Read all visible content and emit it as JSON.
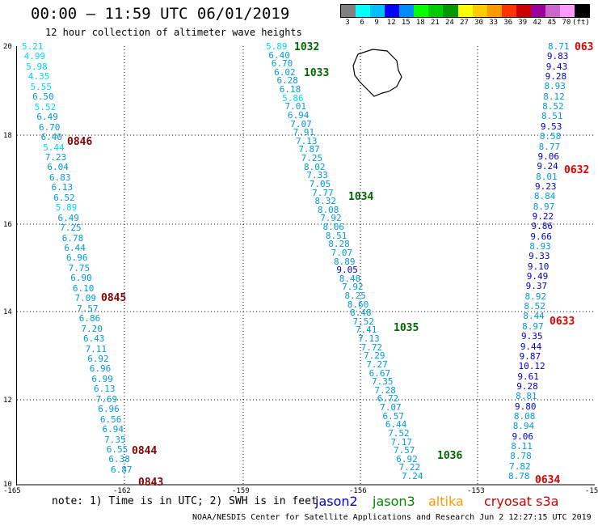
{
  "header": {
    "title": "00:00 – 11:59 UTC 06/01/2019",
    "subtitle": "12 hour collection of altimeter wave heights"
  },
  "legend": {
    "colors": [
      "#808080",
      "#00ffff",
      "#00bfff",
      "#0000ff",
      "#008bff",
      "#00ff00",
      "#00cc00",
      "#009900",
      "#ffff00",
      "#ffcc00",
      "#ff9900",
      "#ff3300",
      "#cc0000",
      "#990099",
      "#cc66cc",
      "#ff99ff",
      "#000000"
    ],
    "labels": [
      "3",
      "6",
      "9",
      "12",
      "15",
      "18",
      "21",
      "24",
      "27",
      "30",
      "33",
      "36",
      "39",
      "42",
      "45",
      "70",
      "(ft)"
    ]
  },
  "axes": {
    "x_ticks": [
      "-165",
      "-162",
      "-159",
      "-156",
      "-153",
      "-15"
    ],
    "y_ticks": [
      "20",
      "18",
      "16",
      "14",
      "12",
      "10"
    ]
  },
  "tracks": {
    "left": [
      "5.21",
      "4.99",
      "5.98",
      "4.35",
      "5.55",
      "6.50",
      "5.52",
      "6.49",
      "6.70",
      "6.40",
      "5.44",
      "7.23",
      "6.04",
      "6.83",
      "6.13",
      "6.52",
      "5.89",
      "6.49",
      "7.25",
      "6.78",
      "6.44",
      "6.96",
      "7.75",
      "6.90",
      "6.10",
      "7.09",
      "7.57",
      "6.86",
      "7.20",
      "6.43",
      "7.11",
      "6.92",
      "6.96",
      "6.99",
      "6.13",
      "7.69",
      "6.96",
      "6.56",
      "6.94",
      "7.35",
      "6.55",
      "6.38",
      "6.87"
    ],
    "middle": [
      "5.89",
      "6.40",
      "6.70",
      "6.02",
      "6.28",
      "6.18",
      "5.86",
      "7.01",
      "6.94",
      "7.07",
      "7.91",
      "7.13",
      "7.87",
      "7.25",
      "8.02",
      "7.33",
      "7.05",
      "7.77",
      "8.32",
      "8.08",
      "7.92",
      "8.06",
      "8.51",
      "8.28",
      "7.07",
      "8.89",
      "9.05",
      "8.48",
      "7.92",
      "8.25",
      "8.60",
      "8.48",
      "7.52",
      "7.41",
      "7.13",
      "7.72",
      "7.29",
      "7.27",
      "6.67",
      "7.35",
      "7.28",
      "6.72",
      "7.07",
      "6.57",
      "6.44",
      "7.52",
      "7.17",
      "7.57",
      "6.92",
      "7.22",
      "7.24"
    ],
    "right": [
      "8.71",
      "9.83",
      "9.43",
      "9.28",
      "8.93",
      "8.12",
      "8.52",
      "8.51",
      "9.53",
      "8.58",
      "8.77",
      "9.06",
      "9.24",
      "8.01",
      "9.23",
      "8.84",
      "8.97",
      "9.22",
      "9.86",
      "9.66",
      "8.93",
      "9.33",
      "9.10",
      "9.49",
      "9.37",
      "8.92",
      "8.52",
      "8.44",
      "8.97",
      "9.35",
      "9.44",
      "9.87",
      "10.12",
      "9.61",
      "9.28",
      "8.81",
      "9.80",
      "8.08",
      "8.94",
      "9.06",
      "8.11",
      "8.78",
      "7.82",
      "8.78"
    ]
  },
  "time_labels": [
    "1032",
    "1033",
    "1034",
    "1035",
    "1036",
    "0846",
    "0845",
    "0844",
    "0843",
    "063",
    "0632",
    "0633",
    "0634"
  ],
  "footer": {
    "note": "note: 1) Time is in UTC; 2) SWH is in feet",
    "satellites": [
      {
        "name": "jason2",
        "color": "#0000cc"
      },
      {
        "name": "jason3",
        "color": "#008800"
      },
      {
        "name": "altika",
        "color": "#ff9900"
      },
      {
        "name": "cryosat s3a",
        "color": "#cc0000"
      }
    ],
    "credit": "NOAA/NESDIS Center for Satellite Applications and Research    Jun  2 12:27:15 UTC 2019"
  }
}
